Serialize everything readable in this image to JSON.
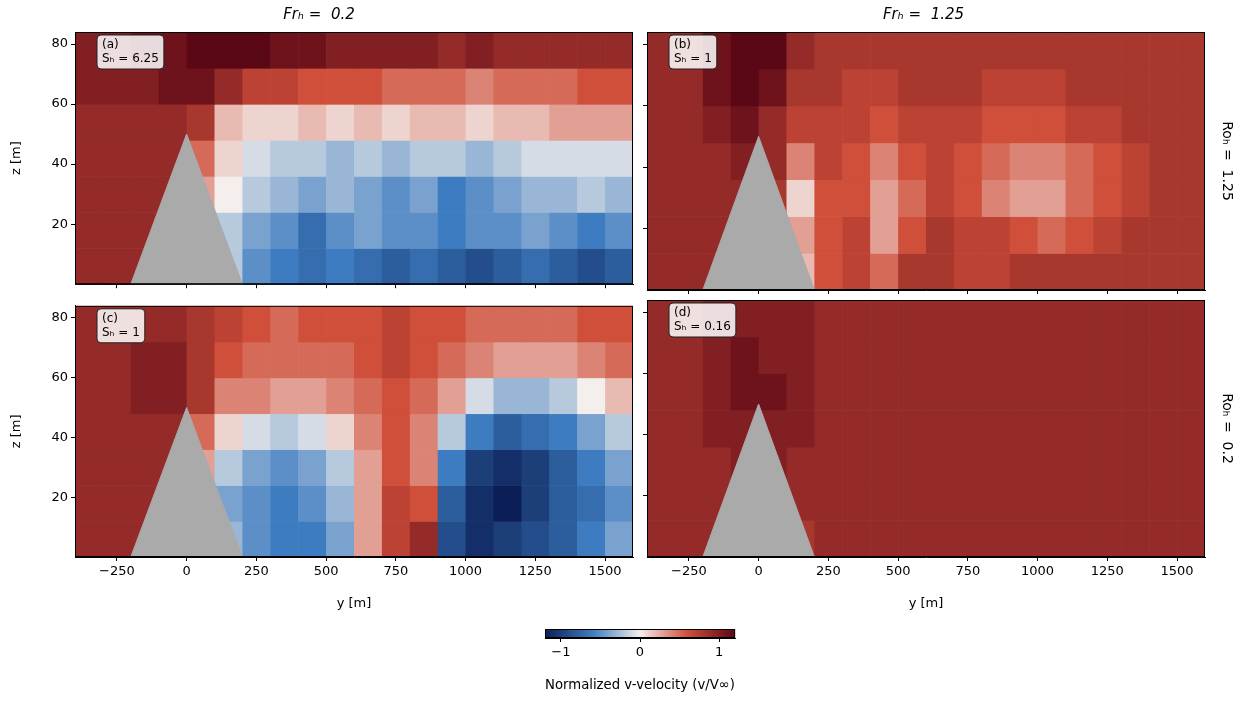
{
  "chart_data": [
    {
      "type": "heatmap",
      "title": "Frₕ =  0.2",
      "label": "(a)",
      "annotation": "Sₕ = 6.25",
      "ylabel": "z [m]",
      "tick_labels": "y",
      "grid": false,
      "xlim": [
        -400,
        1600
      ],
      "xticks": [
        {
          "value": -250,
          "label": "−250"
        },
        0,
        250,
        500,
        750,
        1000,
        1250,
        1500
      ],
      "ylim": [
        0,
        84
      ],
      "yticks": [
        20,
        40,
        60,
        80
      ],
      "terrain": {
        "y": [
          -200,
          0,
          200
        ],
        "z": [
          0,
          50,
          0
        ],
        "color": "#aaaaaa"
      },
      "cells": {
        "y": [
          -350,
          -250,
          -150,
          -50,
          50,
          150,
          250,
          350,
          450,
          550,
          650,
          750,
          850,
          950,
          1050,
          1150,
          1250,
          1350,
          1450,
          1550
        ],
        "z": [
          6,
          18,
          30,
          42,
          54,
          66,
          78
        ],
        "values": [
          [
            0.9,
            0.9,
            0.9,
            0.9,
            0.3,
            -0.2,
            -0.5,
            -0.6,
            -0.7,
            -0.6,
            -0.7,
            -0.8,
            -0.7,
            -0.8,
            -0.9,
            -0.8,
            -0.7,
            -0.8,
            -0.9,
            -0.8
          ],
          [
            0.9,
            0.9,
            0.9,
            0.9,
            0.3,
            -0.2,
            -0.4,
            -0.5,
            -0.7,
            -0.5,
            -0.4,
            -0.5,
            -0.5,
            -0.6,
            -0.5,
            -0.5,
            -0.4,
            -0.5,
            -0.6,
            -0.5
          ],
          [
            0.9,
            0.9,
            0.9,
            0.9,
            0.3,
            0.0,
            -0.2,
            -0.3,
            -0.4,
            -0.3,
            -0.4,
            -0.5,
            -0.4,
            -0.6,
            -0.5,
            -0.4,
            -0.3,
            -0.3,
            -0.2,
            -0.3
          ],
          [
            0.9,
            0.9,
            0.9,
            0.9,
            0.5,
            0.1,
            -0.1,
            -0.2,
            -0.2,
            -0.3,
            -0.2,
            -0.3,
            -0.2,
            -0.2,
            -0.3,
            -0.2,
            -0.1,
            -0.1,
            -0.1,
            -0.1
          ],
          [
            0.9,
            0.9,
            0.9,
            0.9,
            0.8,
            0.2,
            0.1,
            0.1,
            0.2,
            0.1,
            0.2,
            0.1,
            0.2,
            0.2,
            0.1,
            0.2,
            0.2,
            0.3,
            0.3,
            0.3
          ],
          [
            1.0,
            1.0,
            1.0,
            1.1,
            1.1,
            0.9,
            0.7,
            0.7,
            0.6,
            0.6,
            0.6,
            0.5,
            0.5,
            0.5,
            0.4,
            0.5,
            0.5,
            0.5,
            0.6,
            0.6
          ],
          [
            1.0,
            1.0,
            1.1,
            1.1,
            1.2,
            1.2,
            1.2,
            1.1,
            1.1,
            1.0,
            1.0,
            1.0,
            1.0,
            0.9,
            1.0,
            0.9,
            0.9,
            0.9,
            0.9,
            0.9
          ]
        ]
      }
    },
    {
      "type": "heatmap",
      "title": "Frₕ =  1.25",
      "label": "(b)",
      "annotation": "Sₕ = 1",
      "row_label": "Roₕ =  1.25",
      "tick_labels": false,
      "grid": false,
      "xlim": [
        -400,
        1600
      ],
      "xticks": [
        {
          "value": -250,
          "label": "−250"
        },
        0,
        250,
        500,
        750,
        1000,
        1250,
        1500
      ],
      "ylim": [
        0,
        84
      ],
      "yticks": [
        20,
        40,
        60,
        80
      ],
      "terrain": {
        "y": [
          -200,
          0,
          200
        ],
        "z": [
          0,
          50,
          0
        ],
        "color": "#aaaaaa"
      },
      "cells": {
        "y": [
          -350,
          -250,
          -150,
          -50,
          50,
          150,
          250,
          350,
          450,
          550,
          650,
          750,
          850,
          950,
          1050,
          1150,
          1250,
          1350,
          1450,
          1550
        ],
        "z": [
          6,
          18,
          30,
          42,
          54,
          66,
          78
        ],
        "values": [
          [
            0.9,
            0.9,
            0.9,
            0.9,
            0.8,
            0.2,
            0.6,
            0.7,
            0.5,
            0.8,
            0.8,
            0.7,
            0.7,
            0.8,
            0.8,
            0.8,
            0.8,
            0.8,
            0.8,
            0.8
          ],
          [
            0.9,
            0.9,
            0.9,
            0.9,
            0.8,
            0.3,
            0.6,
            0.7,
            0.3,
            0.6,
            0.8,
            0.7,
            0.7,
            0.6,
            0.5,
            0.6,
            0.7,
            0.8,
            0.8,
            0.8
          ],
          [
            0.9,
            0.9,
            0.9,
            0.9,
            0.8,
            0.1,
            0.6,
            0.6,
            0.3,
            0.5,
            0.7,
            0.6,
            0.4,
            0.3,
            0.3,
            0.5,
            0.6,
            0.7,
            0.8,
            0.8
          ],
          [
            0.9,
            0.9,
            0.9,
            1.0,
            0.9,
            0.4,
            0.7,
            0.6,
            0.4,
            0.6,
            0.7,
            0.6,
            0.5,
            0.4,
            0.4,
            0.5,
            0.6,
            0.7,
            0.8,
            0.8
          ],
          [
            0.9,
            0.9,
            1.0,
            1.1,
            0.9,
            0.7,
            0.7,
            0.7,
            0.6,
            0.7,
            0.7,
            0.7,
            0.6,
            0.6,
            0.6,
            0.7,
            0.7,
            0.8,
            0.8,
            0.8
          ],
          [
            0.9,
            0.9,
            1.1,
            1.2,
            1.1,
            0.8,
            0.8,
            0.7,
            0.7,
            0.8,
            0.8,
            0.8,
            0.7,
            0.7,
            0.7,
            0.8,
            0.8,
            0.8,
            0.8,
            0.8
          ],
          [
            0.9,
            0.9,
            1.1,
            1.2,
            1.2,
            0.9,
            0.8,
            0.8,
            0.8,
            0.8,
            0.8,
            0.8,
            0.8,
            0.8,
            0.8,
            0.8,
            0.8,
            0.8,
            0.8,
            0.8
          ]
        ]
      }
    },
    {
      "type": "heatmap",
      "label": "(c)",
      "annotation": "Sₕ = 1",
      "xlabel": "y [m]",
      "ylabel": "z [m]",
      "tick_labels": true,
      "grid": false,
      "xlim": [
        -400,
        1600
      ],
      "xticks": [
        {
          "value": -250,
          "label": "−250"
        },
        0,
        250,
        500,
        750,
        1000,
        1250,
        1500
      ],
      "ylim": [
        0,
        84
      ],
      "yticks": [
        20,
        40,
        60,
        80
      ],
      "terrain": {
        "y": [
          -200,
          0,
          200
        ],
        "z": [
          0,
          50,
          0
        ],
        "color": "#aaaaaa"
      },
      "cells": {
        "y": [
          -350,
          -250,
          -150,
          -50,
          50,
          150,
          250,
          350,
          450,
          550,
          650,
          750,
          850,
          950,
          1050,
          1150,
          1250,
          1350,
          1450,
          1550
        ],
        "z": [
          6,
          18,
          30,
          42,
          54,
          66,
          78
        ],
        "values": [
          [
            0.9,
            0.9,
            0.9,
            0.9,
            0.2,
            -0.3,
            -0.5,
            -0.6,
            -0.6,
            -0.4,
            0.3,
            0.7,
            0.9,
            -0.9,
            -1.1,
            -1.0,
            -0.9,
            -0.8,
            -0.6,
            -0.4
          ],
          [
            0.9,
            0.9,
            0.9,
            0.9,
            0.2,
            -0.4,
            -0.5,
            -0.6,
            -0.5,
            -0.3,
            0.3,
            0.7,
            0.6,
            -0.8,
            -1.1,
            -1.2,
            -1.0,
            -0.8,
            -0.7,
            -0.5
          ],
          [
            0.9,
            0.9,
            0.9,
            0.9,
            0.3,
            -0.2,
            -0.4,
            -0.5,
            -0.4,
            -0.2,
            0.3,
            0.6,
            0.4,
            -0.6,
            -1.0,
            -1.1,
            -1.0,
            -0.8,
            -0.6,
            -0.4
          ],
          [
            0.9,
            0.9,
            0.9,
            0.9,
            0.5,
            0.1,
            -0.1,
            -0.2,
            -0.1,
            0.1,
            0.4,
            0.6,
            0.4,
            -0.2,
            -0.6,
            -0.8,
            -0.7,
            -0.6,
            -0.4,
            -0.2
          ],
          [
            0.9,
            0.9,
            1.0,
            1.0,
            0.8,
            0.4,
            0.4,
            0.3,
            0.3,
            0.4,
            0.5,
            0.6,
            0.5,
            0.3,
            -0.1,
            -0.3,
            -0.3,
            -0.2,
            0.0,
            0.2
          ],
          [
            0.9,
            0.9,
            1.0,
            1.0,
            0.8,
            0.6,
            0.5,
            0.5,
            0.5,
            0.5,
            0.6,
            0.7,
            0.6,
            0.5,
            0.4,
            0.3,
            0.3,
            0.3,
            0.4,
            0.5
          ],
          [
            0.9,
            0.9,
            0.9,
            0.9,
            0.8,
            0.7,
            0.6,
            0.5,
            0.6,
            0.6,
            0.6,
            0.7,
            0.6,
            0.6,
            0.5,
            0.5,
            0.5,
            0.5,
            0.6,
            0.6
          ]
        ]
      }
    },
    {
      "type": "heatmap",
      "label": "(d)",
      "annotation": "Sₕ = 0.16",
      "row_label": "Roₕ =  0.2",
      "xlabel": "y [m]",
      "tick_labels": "x",
      "grid": false,
      "xlim": [
        -400,
        1600
      ],
      "xticks": [
        {
          "value": -250,
          "label": "−250"
        },
        0,
        250,
        500,
        750,
        1000,
        1250,
        1500
      ],
      "ylim": [
        0,
        84
      ],
      "yticks": [
        20,
        40,
        60,
        80
      ],
      "terrain": {
        "y": [
          -200,
          0,
          200
        ],
        "z": [
          0,
          50,
          0
        ],
        "color": "#aaaaaa"
      },
      "cells": {
        "y": [
          -350,
          -250,
          -150,
          -50,
          50,
          150,
          250,
          350,
          450,
          550,
          650,
          750,
          850,
          950,
          1050,
          1150,
          1250,
          1350,
          1450,
          1550
        ],
        "z": [
          6,
          18,
          30,
          42,
          54,
          66,
          78
        ],
        "values": [
          [
            0.9,
            0.9,
            0.9,
            1.0,
            1.0,
            0.8,
            0.9,
            0.9,
            0.9,
            0.9,
            0.9,
            0.9,
            0.9,
            0.9,
            0.9,
            0.9,
            0.9,
            0.9,
            0.9,
            0.9
          ],
          [
            0.9,
            0.9,
            0.9,
            1.0,
            1.0,
            0.9,
            0.9,
            0.9,
            0.9,
            0.9,
            0.9,
            0.9,
            0.9,
            0.9,
            0.9,
            0.9,
            0.9,
            0.9,
            0.9,
            0.9
          ],
          [
            0.9,
            0.9,
            0.9,
            1.0,
            1.0,
            0.9,
            0.9,
            0.9,
            0.9,
            0.9,
            0.9,
            0.9,
            0.9,
            0.9,
            0.9,
            0.9,
            0.9,
            0.9,
            0.9,
            0.9
          ],
          [
            0.9,
            0.9,
            1.0,
            1.0,
            1.0,
            1.0,
            0.9,
            0.9,
            0.9,
            0.9,
            0.9,
            0.9,
            0.9,
            0.9,
            0.9,
            0.9,
            0.9,
            0.9,
            0.9,
            0.9
          ],
          [
            0.9,
            0.9,
            1.0,
            1.1,
            1.1,
            1.0,
            0.9,
            0.9,
            0.9,
            0.9,
            0.9,
            0.9,
            0.9,
            0.9,
            0.9,
            0.9,
            0.9,
            0.9,
            0.9,
            0.9
          ],
          [
            0.9,
            0.9,
            1.0,
            1.1,
            1.0,
            1.0,
            0.9,
            0.9,
            0.9,
            0.9,
            0.9,
            0.9,
            0.9,
            0.9,
            0.9,
            0.9,
            0.9,
            0.9,
            0.9,
            0.9
          ],
          [
            0.9,
            0.9,
            1.0,
            1.0,
            1.0,
            1.0,
            0.9,
            0.9,
            0.9,
            0.9,
            0.9,
            0.9,
            0.9,
            0.9,
            0.9,
            0.9,
            0.9,
            0.9,
            0.9,
            0.9
          ]
        ]
      }
    }
  ],
  "colorbar": {
    "range": [
      -1.2,
      1.2
    ],
    "ticks": [
      {
        "value": -1,
        "label": "−1"
      },
      0,
      1
    ],
    "label": "Normalized v-velocity (v/V∞)"
  }
}
